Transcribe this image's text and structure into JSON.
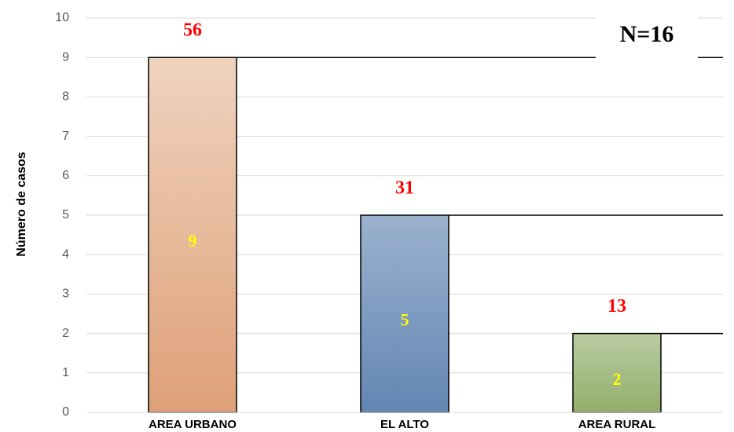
{
  "chart_data": {
    "type": "bar",
    "y_label": "Número de casos",
    "annotation": "N=16",
    "categories": [
      "AREA URBANO",
      "EL ALTO",
      "AREA RURAL"
    ],
    "values": [
      9,
      5,
      2
    ],
    "percentages": [
      56,
      31,
      13
    ],
    "colors": [
      "#dfa57c",
      "#6a8db8",
      "#9bb576"
    ],
    "ylim": [
      0,
      10
    ],
    "yticks": [
      0,
      1,
      2,
      3,
      4,
      5,
      6,
      7,
      8,
      9,
      10
    ],
    "grid": true
  }
}
